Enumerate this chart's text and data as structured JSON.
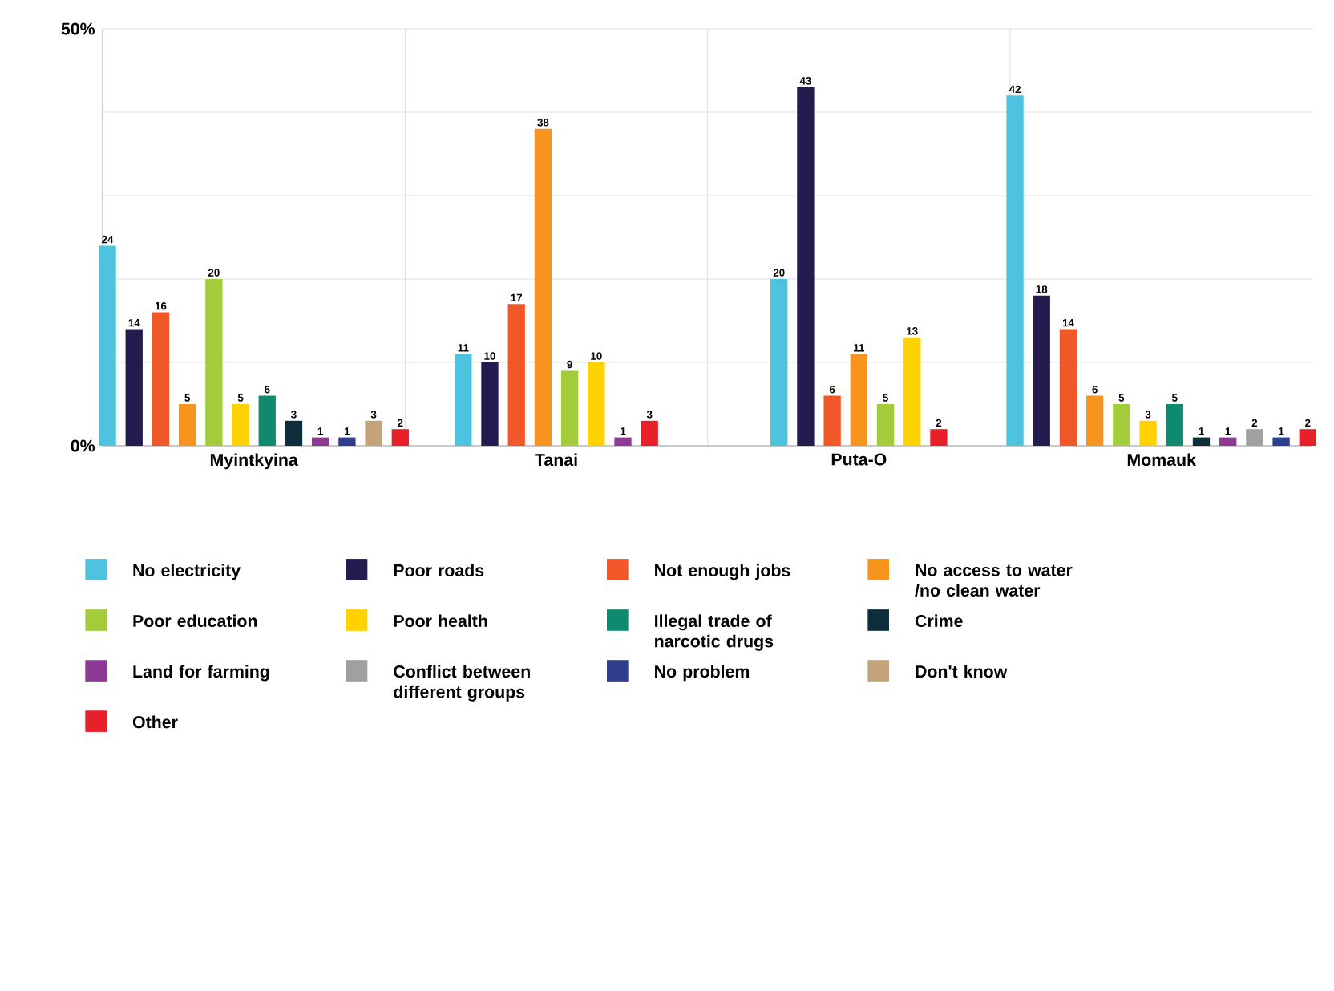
{
  "chart_data": {
    "type": "bar",
    "categories": [
      "Myintkyina",
      "Tanai",
      "Puta-O",
      "Momauk"
    ],
    "series": [
      {
        "name": "No electricity",
        "color": "#4dc3e0",
        "values": [
          24,
          11,
          20,
          42
        ]
      },
      {
        "name": "Poor roads",
        "color": "#241c4e",
        "values": [
          14,
          10,
          43,
          18
        ]
      },
      {
        "name": "Not enough jobs",
        "color": "#f0582a",
        "values": [
          16,
          17,
          6,
          14
        ]
      },
      {
        "name": "No access to water /no clean water",
        "color": "#f7941d",
        "values": [
          5,
          38,
          11,
          6
        ]
      },
      {
        "name": "Poor education",
        "color": "#a3cc3a",
        "values": [
          20,
          9,
          5,
          5
        ]
      },
      {
        "name": "Poor health",
        "color": "#ffd200",
        "values": [
          5,
          10,
          13,
          3
        ]
      },
      {
        "name": "Illegal trade of narcotic drugs",
        "color": "#108a6e",
        "values": [
          6,
          null,
          null,
          5
        ]
      },
      {
        "name": "Crime",
        "color": "#0e2d3a",
        "values": [
          3,
          null,
          null,
          1
        ]
      },
      {
        "name": "Land for farming",
        "color": "#8e3a95",
        "values": [
          1,
          1,
          null,
          1
        ]
      },
      {
        "name": "Conflict between different groups",
        "color": "#a0a0a0",
        "values": [
          null,
          null,
          null,
          2
        ]
      },
      {
        "name": "No problem",
        "color": "#2e3e8c",
        "values": [
          1,
          null,
          null,
          1
        ]
      },
      {
        "name": "Don't know",
        "color": "#c4a27a",
        "values": [
          3,
          null,
          null,
          null
        ]
      },
      {
        "name": "Other",
        "color": "#e8202a",
        "values": [
          2,
          3,
          2,
          2
        ]
      }
    ],
    "ylim": [
      0,
      50
    ],
    "yticks": [
      {
        "value": 0,
        "label": "0%"
      },
      {
        "value": 10,
        "label": null
      },
      {
        "value": 20,
        "label": null
      },
      {
        "value": 30,
        "label": null
      },
      {
        "value": 40,
        "label": null
      },
      {
        "value": 50,
        "label": "50%"
      }
    ],
    "grid": "y",
    "legend": "bottom",
    "data_labels": true
  }
}
